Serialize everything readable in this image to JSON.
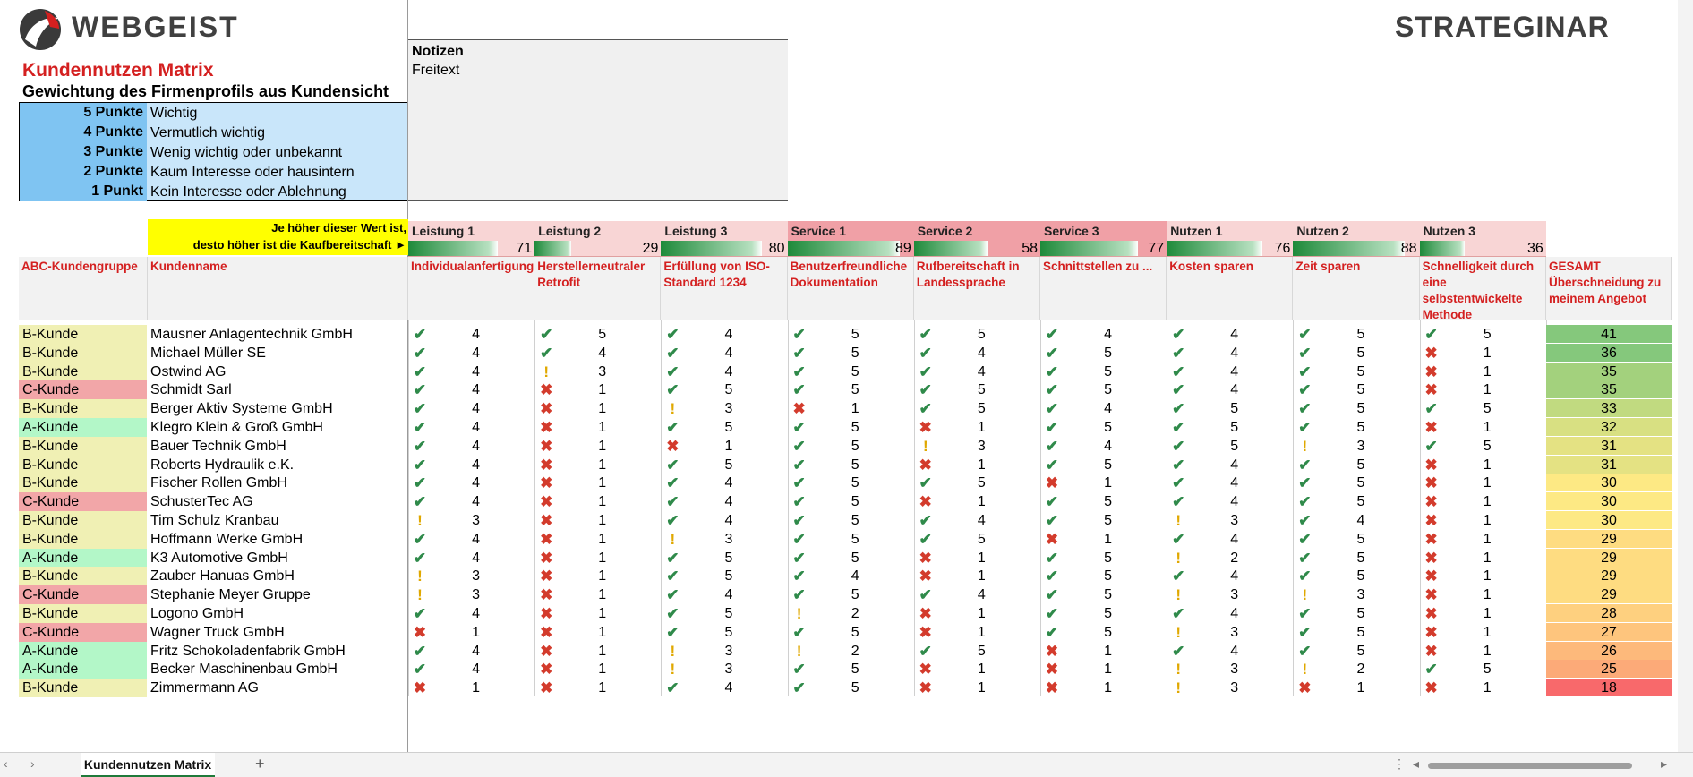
{
  "brand": "WEBGEIST",
  "right_brand": "STRATEGINAR",
  "title": "Kundennutzen Matrix",
  "subtitle": "Gewichtung des Firmenprofils aus Kundensicht",
  "legend": [
    {
      "points": "5 Punkte",
      "desc": "Wichtig"
    },
    {
      "points": "4 Punkte",
      "desc": "Vermutlich wichtig"
    },
    {
      "points": "3 Punkte",
      "desc": "Wenig wichtig oder unbekannt"
    },
    {
      "points": "2 Punkte",
      "desc": "Kaum Interesse oder hausintern"
    },
    {
      "points": "1 Punkt",
      "desc": "Kein Interesse oder Ablehnung"
    }
  ],
  "notes": {
    "heading": "Notizen",
    "text": "Freitext"
  },
  "hint": {
    "line1": "Je höher dieser Wert ist,",
    "line2": "desto höher ist die Kaufbereitschaft ►"
  },
  "columns": {
    "group": "ABC-Kundengruppe",
    "name": "Kundenname",
    "total": "GESAMT Überschneidung zu meinem Angebot"
  },
  "criteria": [
    {
      "name": "Leistung 1",
      "total": 71,
      "detail": "Individualanfertigung",
      "head_color": "#f8d5d5"
    },
    {
      "name": "Leistung 2",
      "total": 29,
      "detail": "Herstellerneutraler Retrofit",
      "head_color": "#f8d5d5"
    },
    {
      "name": "Leistung 3",
      "total": 80,
      "detail": "Erfüllung von ISO-Standard 1234",
      "head_color": "#f8d5d5"
    },
    {
      "name": "Service 1",
      "total": 89,
      "detail": "Benutzerfreundliche Dokumentation",
      "head_color": "#f0a0a6"
    },
    {
      "name": "Service 2",
      "total": 58,
      "detail": "Rufbereitschaft in Landessprache",
      "head_color": "#f0a0a6"
    },
    {
      "name": "Service 3",
      "total": 77,
      "detail": "Schnittstellen zu ...",
      "head_color": "#f0a0a6"
    },
    {
      "name": "Nutzen 1",
      "total": 76,
      "detail": "Kosten sparen",
      "head_color": "#f8d5d5"
    },
    {
      "name": "Nutzen 2",
      "total": 88,
      "detail": "Zeit sparen",
      "head_color": "#f8d5d5"
    },
    {
      "name": "Nutzen 3",
      "total": 36,
      "detail": "Schnelligkeit durch eine selbstentwickelte Methode",
      "head_color": "#f8d5d5"
    }
  ],
  "rows": [
    {
      "group": "B-Kunde",
      "name": "Mausner Anlagentechnik GmbH",
      "scores": [
        4,
        5,
        4,
        5,
        5,
        4,
        4,
        5,
        5
      ],
      "total": 41
    },
    {
      "group": "B-Kunde",
      "name": "Michael Müller SE",
      "scores": [
        4,
        4,
        4,
        5,
        4,
        5,
        4,
        5,
        1
      ],
      "total": 36
    },
    {
      "group": "B-Kunde",
      "name": "Ostwind AG",
      "scores": [
        4,
        3,
        4,
        5,
        4,
        5,
        4,
        5,
        1
      ],
      "total": 35
    },
    {
      "group": "C-Kunde",
      "name": "Schmidt Sarl",
      "scores": [
        4,
        1,
        5,
        5,
        5,
        5,
        4,
        5,
        1
      ],
      "total": 35
    },
    {
      "group": "B-Kunde",
      "name": "Berger Aktiv Systeme GmbH",
      "scores": [
        4,
        1,
        3,
        1,
        5,
        4,
        5,
        5,
        5
      ],
      "total": 33
    },
    {
      "group": "A-Kunde",
      "name": "Klegro Klein & Groß GmbH",
      "scores": [
        4,
        1,
        5,
        5,
        1,
        5,
        5,
        5,
        1
      ],
      "total": 32
    },
    {
      "group": "B-Kunde",
      "name": "Bauer Technik GmbH",
      "scores": [
        4,
        1,
        1,
        5,
        3,
        4,
        5,
        3,
        5
      ],
      "total": 31
    },
    {
      "group": "B-Kunde",
      "name": "Roberts Hydraulik e.K.",
      "scores": [
        4,
        1,
        5,
        5,
        1,
        5,
        4,
        5,
        1
      ],
      "total": 31
    },
    {
      "group": "B-Kunde",
      "name": "Fischer Rollen GmbH",
      "scores": [
        4,
        1,
        4,
        5,
        5,
        1,
        4,
        5,
        1
      ],
      "total": 30
    },
    {
      "group": "C-Kunde",
      "name": "SchusterTec AG",
      "scores": [
        4,
        1,
        4,
        5,
        1,
        5,
        4,
        5,
        1
      ],
      "total": 30
    },
    {
      "group": "B-Kunde",
      "name": "Tim Schulz Kranbau",
      "scores": [
        3,
        1,
        4,
        5,
        4,
        5,
        3,
        4,
        1
      ],
      "total": 30
    },
    {
      "group": "B-Kunde",
      "name": "Hoffmann Werke GmbH",
      "scores": [
        4,
        1,
        3,
        5,
        5,
        1,
        4,
        5,
        1
      ],
      "total": 29
    },
    {
      "group": "A-Kunde",
      "name": "K3 Automotive GmbH",
      "scores": [
        4,
        1,
        5,
        5,
        1,
        5,
        2,
        5,
        1
      ],
      "total": 29
    },
    {
      "group": "B-Kunde",
      "name": "Zauber Hanuas GmbH",
      "scores": [
        3,
        1,
        5,
        4,
        1,
        5,
        4,
        5,
        1
      ],
      "total": 29
    },
    {
      "group": "C-Kunde",
      "name": "Stephanie Meyer Gruppe",
      "scores": [
        3,
        1,
        4,
        5,
        4,
        5,
        3,
        3,
        1
      ],
      "total": 29
    },
    {
      "group": "B-Kunde",
      "name": "Logono GmbH",
      "scores": [
        4,
        1,
        5,
        2,
        1,
        5,
        4,
        5,
        1
      ],
      "total": 28
    },
    {
      "group": "C-Kunde",
      "name": "Wagner Truck GmbH",
      "scores": [
        1,
        1,
        5,
        5,
        1,
        5,
        3,
        5,
        1
      ],
      "total": 27
    },
    {
      "group": "A-Kunde",
      "name": "Fritz Schokoladenfabrik GmbH",
      "scores": [
        4,
        1,
        3,
        2,
        5,
        1,
        4,
        5,
        1
      ],
      "total": 26
    },
    {
      "group": "A-Kunde",
      "name": "Becker Maschinenbau GmbH",
      "scores": [
        4,
        1,
        3,
        5,
        1,
        1,
        3,
        2,
        5
      ],
      "total": 25
    },
    {
      "group": "B-Kunde",
      "name": "Zimmermann AG",
      "scores": [
        1,
        1,
        4,
        5,
        1,
        1,
        3,
        1,
        1
      ],
      "total": 18
    }
  ],
  "group_colors": {
    "A-Kunde": "#b3f7c8",
    "B-Kunde": "#f0f0b4",
    "C-Kunde": "#f2a6a8"
  },
  "icons": {
    "high": "check-icon",
    "mid": "exclamation-icon",
    "low": "cross-icon"
  },
  "sheet_tab": "Kundennutzen Matrix",
  "add_tab_label": "+"
}
